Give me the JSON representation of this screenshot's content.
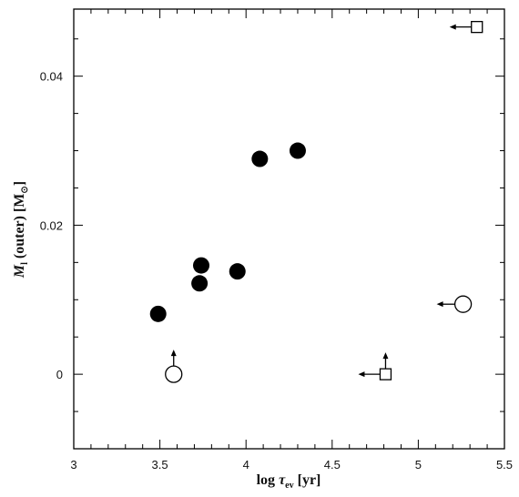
{
  "chart_data": {
    "type": "scatter",
    "xlabel": {
      "main": "log ",
      "symbol": "τ",
      "sub": "ev",
      "unit": " [yr]"
    },
    "ylabel": {
      "main": "M",
      "sub": "l",
      "rest": " (outer) [M",
      "sun": "⊙",
      "close": "]"
    },
    "xlim": [
      3,
      5.5
    ],
    "ylim": [
      -0.01,
      0.049
    ],
    "xticks": [
      3,
      3.5,
      4,
      4.5,
      5,
      5.5
    ],
    "xtick_labels": [
      "3",
      "3.5",
      "4",
      "4.5",
      "5",
      "5.5"
    ],
    "yticks": [
      0,
      0.02,
      0.04
    ],
    "ytick_labels": [
      "0",
      "0.02",
      "0.04"
    ],
    "grid": false,
    "series": [
      {
        "marker": "filled-circle",
        "points": [
          {
            "x": 3.49,
            "y": 0.0081
          },
          {
            "x": 3.73,
            "y": 0.0122
          },
          {
            "x": 3.74,
            "y": 0.0146
          },
          {
            "x": 3.95,
            "y": 0.0138
          },
          {
            "x": 4.08,
            "y": 0.0289
          },
          {
            "x": 4.3,
            "y": 0.03
          }
        ]
      },
      {
        "marker": "open-circle",
        "points": [
          {
            "x": 3.58,
            "y": 0.0,
            "limit": "lower"
          },
          {
            "x": 5.26,
            "y": 0.0094,
            "limit": "upper-x"
          }
        ]
      },
      {
        "marker": "open-square",
        "points": [
          {
            "x": 4.81,
            "y": 0.0,
            "limit": "upper-x-lower-y"
          },
          {
            "x": 5.34,
            "y": 0.0466,
            "limit": "upper-x"
          }
        ]
      }
    ],
    "colors": {
      "marker": "#000000",
      "axis": "#000000",
      "background": "#ffffff"
    }
  }
}
